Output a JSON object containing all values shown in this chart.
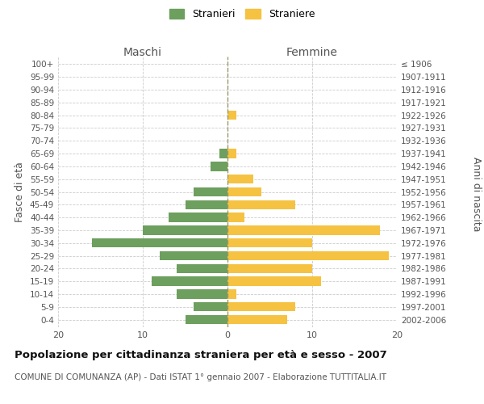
{
  "age_groups": [
    "0-4",
    "5-9",
    "10-14",
    "15-19",
    "20-24",
    "25-29",
    "30-34",
    "35-39",
    "40-44",
    "45-49",
    "50-54",
    "55-59",
    "60-64",
    "65-69",
    "70-74",
    "75-79",
    "80-84",
    "85-89",
    "90-94",
    "95-99",
    "100+"
  ],
  "birth_years": [
    "2002-2006",
    "1997-2001",
    "1992-1996",
    "1987-1991",
    "1982-1986",
    "1977-1981",
    "1972-1976",
    "1967-1971",
    "1962-1966",
    "1957-1961",
    "1952-1956",
    "1947-1951",
    "1942-1946",
    "1937-1941",
    "1932-1936",
    "1927-1931",
    "1922-1926",
    "1917-1921",
    "1912-1916",
    "1907-1911",
    "≤ 1906"
  ],
  "maschi": [
    5,
    4,
    6,
    9,
    6,
    8,
    16,
    10,
    7,
    5,
    4,
    0,
    2,
    1,
    0,
    0,
    0,
    0,
    0,
    0,
    0
  ],
  "femmine": [
    7,
    8,
    1,
    11,
    10,
    19,
    10,
    18,
    2,
    8,
    4,
    3,
    0,
    1,
    0,
    0,
    1,
    0,
    0,
    0,
    0
  ],
  "maschi_color": "#6d9f5e",
  "femmine_color": "#f5c242",
  "grid_color": "#cccccc",
  "dashed_line_color": "#999966",
  "title": "Popolazione per cittadinanza straniera per età e sesso - 2007",
  "subtitle": "COMUNE DI COMUNANZA (AP) - Dati ISTAT 1° gennaio 2007 - Elaborazione TUTTITALIA.IT",
  "xlabel_left": "Maschi",
  "xlabel_right": "Femmine",
  "ylabel_left": "Fasce di età",
  "ylabel_right": "Anni di nascita",
  "legend_stranieri": "Stranieri",
  "legend_straniere": "Straniere",
  "xlim": 20
}
